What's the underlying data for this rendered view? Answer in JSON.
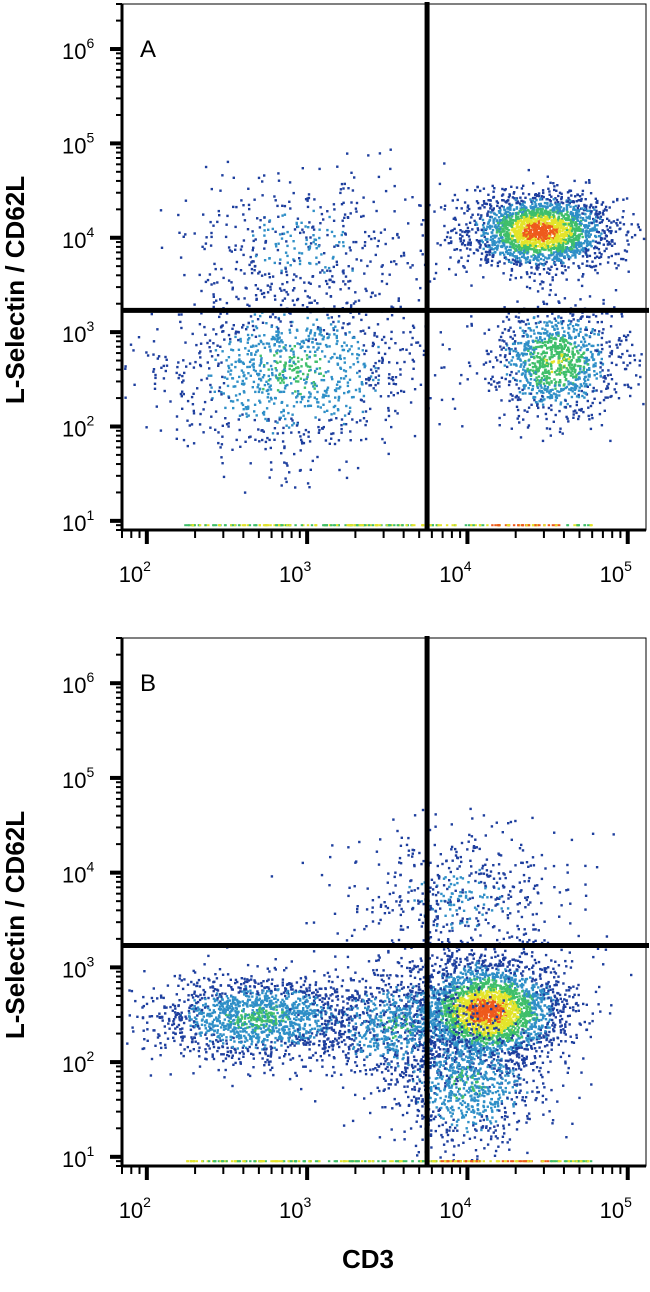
{
  "chart_data": [
    {
      "type": "scatter",
      "panel_label": "A",
      "title": "",
      "xlabel": "",
      "ylabel": "L-Selectin / CD62L",
      "x_scale": "log",
      "y_scale": "log",
      "xlim": [
        70,
        130000
      ],
      "ylim": [
        8,
        3000000
      ],
      "x_ticks": [
        {
          "base": "10",
          "exp": "2"
        },
        {
          "base": "10",
          "exp": "3"
        },
        {
          "base": "10",
          "exp": "4"
        },
        {
          "base": "10",
          "exp": "5"
        }
      ],
      "y_ticks": [
        {
          "base": "10",
          "exp": "1"
        },
        {
          "base": "10",
          "exp": "2"
        },
        {
          "base": "10",
          "exp": "3"
        },
        {
          "base": "10",
          "exp": "4"
        },
        {
          "base": "10",
          "exp": "5"
        },
        {
          "base": "10",
          "exp": "6"
        }
      ],
      "quadrant_gate": {
        "x": 5600,
        "y": 1700
      },
      "clusters": [
        {
          "x": 28000,
          "y": 12000,
          "sx": 0.22,
          "sy": 0.2,
          "n": 2200,
          "intensity": 1.0
        },
        {
          "x": 35000,
          "y": 500,
          "sx": 0.2,
          "sy": 0.3,
          "n": 1100,
          "intensity": 0.65
        },
        {
          "x": 800,
          "y": 400,
          "sx": 0.38,
          "sy": 0.45,
          "n": 1100,
          "intensity": 0.45
        },
        {
          "x": 1000,
          "y": 9000,
          "sx": 0.4,
          "sy": 0.4,
          "n": 420,
          "intensity": 0.2
        }
      ],
      "floor_band": {
        "x_min": 170,
        "x_max": 60000,
        "y": 9
      }
    },
    {
      "type": "scatter",
      "panel_label": "B",
      "title": "",
      "xlabel": "CD3",
      "ylabel": "L-Selectin / CD62L",
      "x_scale": "log",
      "y_scale": "log",
      "xlim": [
        70,
        130000
      ],
      "ylim": [
        8,
        3000000
      ],
      "x_ticks": [
        {
          "base": "10",
          "exp": "2"
        },
        {
          "base": "10",
          "exp": "3"
        },
        {
          "base": "10",
          "exp": "4"
        },
        {
          "base": "10",
          "exp": "5"
        }
      ],
      "y_ticks": [
        {
          "base": "10",
          "exp": "1"
        },
        {
          "base": "10",
          "exp": "2"
        },
        {
          "base": "10",
          "exp": "3"
        },
        {
          "base": "10",
          "exp": "4"
        },
        {
          "base": "10",
          "exp": "5"
        },
        {
          "base": "10",
          "exp": "6"
        }
      ],
      "quadrant_gate": {
        "x": 5600,
        "y": 1700
      },
      "clusters": [
        {
          "x": 13000,
          "y": 350,
          "sx": 0.24,
          "sy": 0.28,
          "n": 3000,
          "intensity": 1.0
        },
        {
          "x": 10000,
          "y": 60,
          "sx": 0.25,
          "sy": 0.35,
          "n": 900,
          "intensity": 0.4
        },
        {
          "x": 500,
          "y": 300,
          "sx": 0.35,
          "sy": 0.22,
          "n": 1600,
          "intensity": 0.45
        },
        {
          "x": 3500,
          "y": 250,
          "sx": 0.25,
          "sy": 0.3,
          "n": 700,
          "intensity": 0.4
        },
        {
          "x": 9000,
          "y": 6000,
          "sx": 0.35,
          "sy": 0.35,
          "n": 500,
          "intensity": 0.2
        }
      ],
      "floor_band": {
        "x_min": 170,
        "x_max": 60000,
        "y": 9
      }
    }
  ],
  "colors": {
    "low": "#1e3f9e",
    "mid": "#2f8fc7",
    "mid_high": "#3fbf6a",
    "high": "#e4e42a",
    "peak": "#ee5a1c",
    "frame": "#000000",
    "background": "#ffffff"
  }
}
